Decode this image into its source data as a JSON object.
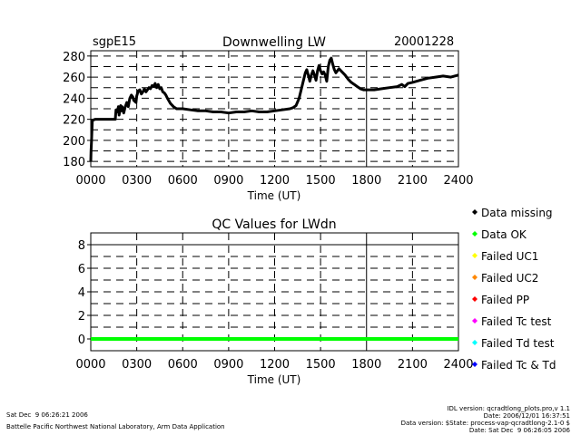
{
  "header": {
    "station": "sgpE15",
    "title": "Downwelling LW",
    "date": "20001228"
  },
  "legend": [
    {
      "label": "Data missing",
      "color": "#000000"
    },
    {
      "label": "Data OK",
      "color": "#00ff00"
    },
    {
      "label": "Failed UC1",
      "color": "#ffff00"
    },
    {
      "label": "Failed UC2",
      "color": "#ff8800"
    },
    {
      "label": "Failed PP",
      "color": "#ff0000"
    },
    {
      "label": "Failed Tc test",
      "color": "#ff00ff"
    },
    {
      "label": "Failed Td test",
      "color": "#00ffff"
    },
    {
      "label": "Failed Tc & Td",
      "color": "#0000ff"
    }
  ],
  "footer": {
    "timestamp": "Sat Dec  9 06:26:21 2006",
    "lab": "Battelle Pacific Northwest National Laboratory, Arm Data Application",
    "idl_version": "IDL version: qcradtlong_plots.pro,v 1.1",
    "idl_date": "Date: 2006/12/01 16:37:51",
    "data_version": "Data version: $State: process-vap-qcradtlong-2.1-0 $",
    "data_date": "Date: Sat Dec  9 06:26:05 2006"
  },
  "chart_data": [
    {
      "type": "line",
      "title": "Downwelling LW",
      "xlabel": "Time (UT)",
      "ylabel": "",
      "xlim": [
        0,
        24
      ],
      "ylim": [
        175,
        285
      ],
      "x_ticks": [
        "0000",
        "0300",
        "0600",
        "0900",
        "1200",
        "1500",
        "1800",
        "2100",
        "2400"
      ],
      "y_ticks": [
        180,
        200,
        220,
        240,
        260,
        280
      ],
      "grid": true,
      "color": "#000000",
      "x": [
        0.0,
        0.02,
        0.05,
        0.1,
        0.3,
        0.8,
        1.3,
        1.6,
        1.65,
        1.75,
        1.8,
        1.85,
        1.95,
        2.0,
        2.05,
        2.15,
        2.25,
        2.35,
        2.45,
        2.55,
        2.65,
        2.75,
        2.8,
        2.95,
        3.0,
        3.1,
        3.2,
        3.3,
        3.4,
        3.5,
        3.6,
        3.7,
        3.8,
        3.9,
        4.0,
        4.1,
        4.2,
        4.3,
        4.4,
        4.5,
        4.6,
        4.7,
        4.8,
        4.9,
        5.0,
        5.2,
        5.4,
        5.6,
        5.8,
        6.0,
        6.5,
        7.0,
        7.5,
        8.0,
        8.5,
        9.0,
        9.5,
        10.0,
        10.5,
        11.0,
        11.5,
        12.0,
        12.5,
        13.0,
        13.2,
        13.4,
        13.6,
        13.8,
        13.9,
        14.0,
        14.1,
        14.2,
        14.3,
        14.4,
        14.5,
        14.6,
        14.7,
        14.8,
        14.9,
        15.0,
        15.1,
        15.2,
        15.3,
        15.4,
        15.5,
        15.6,
        15.7,
        15.8,
        15.9,
        16.0,
        16.2,
        16.4,
        16.6,
        16.8,
        17.0,
        17.2,
        17.4,
        17.6,
        17.8,
        18.0,
        18.5,
        19.0,
        19.5,
        20.0,
        20.3,
        20.5,
        20.7,
        21.0,
        21.5,
        22.0,
        22.5,
        23.0,
        23.5,
        24.0
      ],
      "y": [
        180,
        190,
        199,
        219,
        220,
        220,
        220,
        220,
        229,
        227,
        232,
        224,
        233,
        228,
        232,
        226,
        232,
        236,
        232,
        240,
        243,
        241,
        238,
        236,
        242,
        247,
        248,
        244,
        246,
        249,
        246,
        248,
        250,
        249,
        252,
        251,
        254,
        250,
        253,
        249,
        250,
        246,
        245,
        243,
        240,
        235,
        232,
        230,
        230,
        230,
        229,
        228,
        228,
        227,
        227,
        226,
        227,
        227,
        228,
        227,
        227,
        228,
        229,
        230,
        231,
        233,
        240,
        252,
        258,
        264,
        267,
        262,
        256,
        262,
        266,
        262,
        257,
        266,
        271,
        266,
        263,
        265,
        262,
        256,
        270,
        276,
        278,
        272,
        267,
        264,
        268,
        265,
        262,
        258,
        255,
        253,
        251,
        249,
        248,
        248,
        248,
        249,
        250,
        251,
        253,
        251,
        254,
        255,
        257,
        259,
        260,
        261,
        260,
        262
      ]
    },
    {
      "type": "line",
      "title": "QC Values for LWdn",
      "xlabel": "Time (UT)",
      "ylabel": "",
      "xlim": [
        0,
        24
      ],
      "ylim": [
        -1,
        9
      ],
      "x_ticks": [
        "0000",
        "0300",
        "0600",
        "0900",
        "1200",
        "1500",
        "1800",
        "2100",
        "2400"
      ],
      "y_ticks": [
        0,
        2,
        4,
        6,
        8
      ],
      "grid": true,
      "color": "#00ff00",
      "x": [
        0,
        24
      ],
      "y": [
        0,
        0
      ]
    }
  ]
}
